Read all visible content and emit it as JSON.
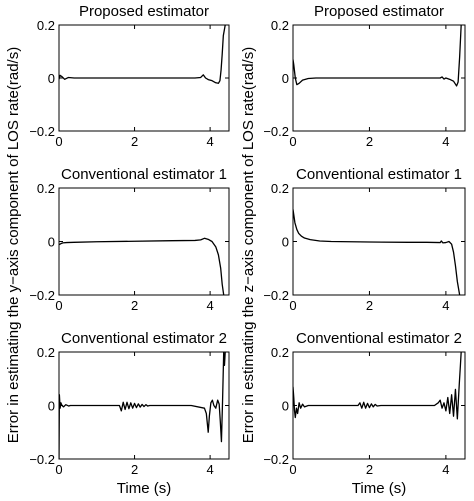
{
  "chart_data": [
    {
      "type": "line",
      "title": "Proposed estimator",
      "xlabel": "",
      "ylabel": "Error in estimating the y−axis component of LOS rate(rad/s)",
      "xlim": [
        0,
        4.5
      ],
      "ylim": [
        -0.2,
        0.2
      ],
      "xticks": [
        0,
        2,
        4
      ],
      "yticks": [
        -0.2,
        0,
        0.2
      ],
      "xtick_labels": [
        "0",
        "2",
        "4"
      ],
      "ytick_labels": [
        "−0.2",
        "0",
        "0.2"
      ],
      "series": [
        {
          "x": [
            0,
            0.03,
            0.08,
            0.15,
            0.25,
            0.4,
            1,
            2,
            3,
            3.6,
            3.75,
            3.82,
            3.88,
            3.95,
            4.05,
            4.15,
            4.22,
            4.26,
            4.29,
            4.32,
            4.35,
            4.4
          ],
          "values": [
            -0.005,
            0.01,
            0.005,
            -0.005,
            0.002,
            0,
            0,
            0,
            0,
            0,
            0.002,
            0.012,
            0,
            -0.006,
            -0.01,
            -0.018,
            -0.02,
            -0.01,
            0.03,
            0.09,
            0.16,
            0.2
          ]
        }
      ]
    },
    {
      "type": "line",
      "title": "Proposed estimator",
      "xlabel": "",
      "ylabel": "Error in estimating the z−axis component of LOS rate(rad/s)",
      "xlim": [
        0,
        4.5
      ],
      "ylim": [
        -0.2,
        0.2
      ],
      "xticks": [
        0,
        2,
        4
      ],
      "yticks": [
        -0.2,
        0,
        0.2
      ],
      "xtick_labels": [
        "0",
        "2",
        "4"
      ],
      "ytick_labels": [
        "−0.2",
        "0",
        "0.2"
      ],
      "series": [
        {
          "x": [
            0,
            0.02,
            0.06,
            0.1,
            0.16,
            0.25,
            0.4,
            0.6,
            1,
            2,
            3,
            3.85,
            3.9,
            3.95,
            4,
            4.1,
            4.2,
            4.28,
            4.32,
            4.36,
            4.4
          ],
          "values": [
            0.07,
            0.05,
            0.0,
            -0.025,
            -0.02,
            -0.008,
            -0.002,
            0,
            0,
            0,
            0,
            0,
            0.004,
            -0.004,
            0,
            -0.005,
            -0.012,
            -0.03,
            -0.015,
            0.08,
            0.2
          ]
        }
      ]
    },
    {
      "type": "line",
      "title": "Conventional estimator 1",
      "xlabel": "",
      "xlim": [
        0,
        4.5
      ],
      "ylim": [
        -0.2,
        0.2
      ],
      "xticks": [
        0,
        2,
        4
      ],
      "yticks": [
        -0.2,
        0,
        0.2
      ],
      "xtick_labels": [
        "0",
        "2",
        "4"
      ],
      "ytick_labels": [
        "−0.2",
        "0",
        "0.2"
      ],
      "series": [
        {
          "x": [
            0,
            0.05,
            0.1,
            0.2,
            0.4,
            1,
            2,
            3,
            3.6,
            3.75,
            3.85,
            3.95,
            4.05,
            4.15,
            4.22,
            4.28,
            4.32,
            4.36
          ],
          "values": [
            -0.012,
            -0.008,
            -0.005,
            -0.004,
            -0.003,
            -0.001,
            0.001,
            0.003,
            0.004,
            0.006,
            0.012,
            0.008,
            0,
            -0.02,
            -0.05,
            -0.1,
            -0.16,
            -0.2
          ]
        }
      ]
    },
    {
      "type": "line",
      "title": "Conventional estimator 1",
      "xlabel": "",
      "xlim": [
        0,
        4.5
      ],
      "ylim": [
        -0.2,
        0.2
      ],
      "xticks": [
        0,
        2,
        4
      ],
      "yticks": [
        -0.2,
        0,
        0.2
      ],
      "xtick_labels": [
        "0",
        "2",
        "4"
      ],
      "ytick_labels": [
        "−0.2",
        "0",
        "0.2"
      ],
      "series": [
        {
          "x": [
            0,
            0.02,
            0.05,
            0.1,
            0.15,
            0.22,
            0.3,
            0.45,
            0.7,
            1,
            2,
            3,
            3.5,
            3.85,
            3.88,
            3.92,
            4,
            4.08,
            4.15,
            4.2,
            4.25,
            4.3,
            4.36
          ],
          "values": [
            0.12,
            0.1,
            0.07,
            0.045,
            0.03,
            0.02,
            0.013,
            0.007,
            0.002,
            0,
            -0.002,
            -0.003,
            -0.003,
            -0.004,
            0.002,
            -0.005,
            -0.004,
            0,
            -0.01,
            -0.04,
            -0.09,
            -0.15,
            -0.2
          ]
        }
      ]
    },
    {
      "type": "line",
      "title": "Conventional estimator 2",
      "xlabel": "Time (s)",
      "xlim": [
        0,
        4.5
      ],
      "ylim": [
        -0.2,
        0.2
      ],
      "xticks": [
        0,
        2,
        4
      ],
      "yticks": [
        -0.2,
        0,
        0.2
      ],
      "xtick_labels": [
        "0",
        "2",
        "4"
      ],
      "ytick_labels": [
        "−0.2",
        "0",
        "0.2"
      ],
      "series": [
        {
          "x": [
            0,
            0.01,
            0.03,
            0.05,
            0.08,
            0.12,
            0.18,
            0.26,
            0.3,
            1,
            1.6,
            1.65,
            1.7,
            1.75,
            1.8,
            1.85,
            1.9,
            1.95,
            2,
            2.05,
            2.1,
            2.15,
            2.2,
            2.25,
            2.3,
            2.35,
            2.4,
            2.6,
            3.5,
            3.85,
            3.9,
            3.95,
            3.98,
            4.02,
            4.06,
            4.1,
            4.15,
            4.2,
            4.24,
            4.27,
            4.3,
            4.33,
            4.36,
            4.38,
            4.4
          ],
          "values": [
            -0.2,
            0.04,
            -0.01,
            0.01,
            0,
            -0.005,
            0.003,
            -0.002,
            0,
            0,
            0,
            -0.02,
            0.012,
            -0.015,
            0.012,
            -0.012,
            0.01,
            -0.01,
            0.008,
            -0.008,
            0.006,
            -0.006,
            0.004,
            -0.004,
            0.003,
            -0.002,
            0,
            0,
            0,
            -0.01,
            -0.03,
            -0.1,
            -0.04,
            0.01,
            0.02,
            0,
            -0.01,
            0.02,
            0.005,
            -0.06,
            -0.135,
            0.02,
            0.2,
            0.15,
            0.2
          ]
        }
      ]
    },
    {
      "type": "line",
      "title": "Conventional estimator 2",
      "xlabel": "Time (s)",
      "xlim": [
        0,
        4.5
      ],
      "ylim": [
        -0.2,
        0.2
      ],
      "xticks": [
        0,
        2,
        4
      ],
      "yticks": [
        -0.2,
        0,
        0.2
      ],
      "xtick_labels": [
        "0",
        "2",
        "4"
      ],
      "ytick_labels": [
        "−0.2",
        "0",
        "0.2"
      ],
      "series": [
        {
          "x": [
            0,
            0.02,
            0.04,
            0.06,
            0.09,
            0.12,
            0.16,
            0.2,
            0.25,
            0.3,
            0.4,
            1,
            1.7,
            1.75,
            1.8,
            1.85,
            1.9,
            1.95,
            2,
            2.05,
            2.1,
            2.15,
            2.2,
            2.3,
            3,
            3.7,
            3.8,
            3.85,
            3.9,
            3.95,
            4,
            4.05,
            4.1,
            4.15,
            4.2,
            4.25,
            4.3,
            4.35,
            4.38,
            4.4
          ],
          "values": [
            0.07,
            0.03,
            -0.02,
            -0.045,
            -0.01,
            -0.03,
            0.01,
            -0.01,
            0.005,
            -0.005,
            0,
            0,
            0,
            0.01,
            -0.01,
            0.012,
            -0.01,
            0.008,
            -0.008,
            0.006,
            -0.005,
            0.004,
            -0.002,
            0,
            0,
            0,
            0.01,
            0.02,
            -0.01,
            0.01,
            -0.02,
            0.03,
            -0.03,
            0.04,
            -0.04,
            0.06,
            -0.05,
            0.08,
            0.15,
            0.2
          ]
        }
      ]
    }
  ]
}
